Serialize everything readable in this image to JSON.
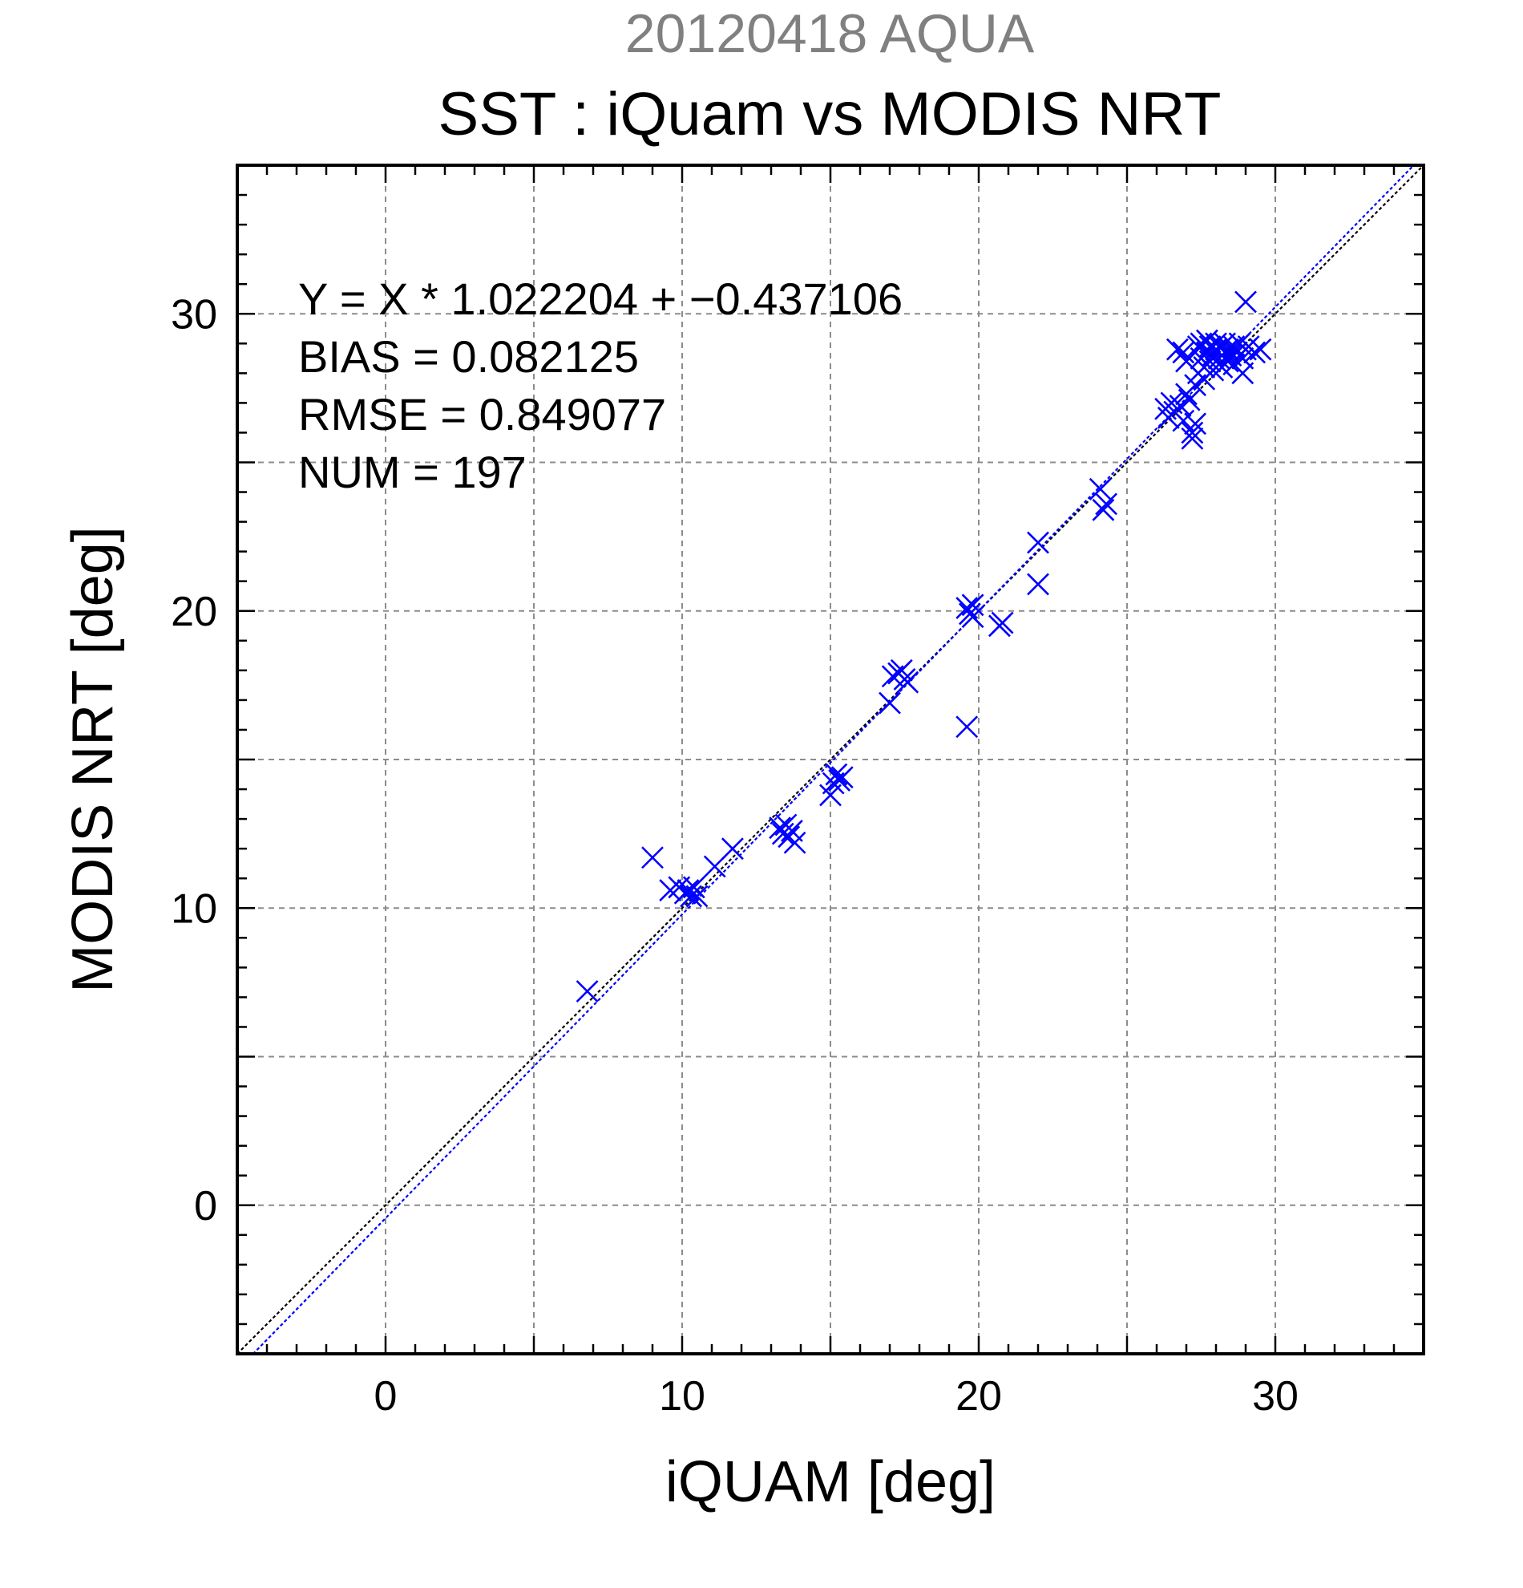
{
  "chart_data": {
    "type": "scatter",
    "title": "SST : iQuam vs MODIS NRT",
    "subtitle": "20120418 AQUA",
    "xlabel": "iQUAM [deg]",
    "ylabel": "MODIS NRT [deg]",
    "xlim": [
      -5,
      35
    ],
    "ylim": [
      -5,
      35
    ],
    "xticks": [
      0,
      10,
      20,
      30
    ],
    "yticks": [
      0,
      10,
      20,
      30
    ],
    "grid": true,
    "stats": [
      "Y = X * 1.022204 + −0.437106",
      "BIAS = 0.082125",
      "RMSE = 0.849077",
      "NUM = 197"
    ],
    "lines": [
      {
        "kind": "one-to-one",
        "slope": 1.0,
        "intercept": 0.0,
        "color": "#000000"
      },
      {
        "kind": "regression",
        "slope": 1.022204,
        "intercept": -0.437106,
        "color": "#0000ff"
      }
    ],
    "marker_color": "#0000ff",
    "marker": "x",
    "points": [
      [
        6.8,
        7.2
      ],
      [
        9.0,
        11.7
      ],
      [
        9.6,
        10.6
      ],
      [
        9.9,
        10.7
      ],
      [
        10.1,
        10.5
      ],
      [
        10.2,
        10.6
      ],
      [
        10.3,
        10.4
      ],
      [
        10.4,
        10.7
      ],
      [
        10.5,
        10.4
      ],
      [
        11.1,
        11.4
      ],
      [
        11.7,
        12.0
      ],
      [
        13.3,
        12.7
      ],
      [
        13.4,
        12.5
      ],
      [
        13.5,
        12.8
      ],
      [
        13.6,
        12.4
      ],
      [
        13.7,
        12.6
      ],
      [
        13.8,
        12.2
      ],
      [
        15.0,
        13.8
      ],
      [
        15.1,
        14.2
      ],
      [
        15.2,
        14.5
      ],
      [
        15.3,
        14.3
      ],
      [
        15.4,
        14.4
      ],
      [
        17.0,
        16.9
      ],
      [
        17.1,
        17.8
      ],
      [
        17.3,
        17.9
      ],
      [
        17.4,
        18.0
      ],
      [
        17.5,
        17.7
      ],
      [
        17.6,
        17.6
      ],
      [
        19.6,
        16.1
      ],
      [
        19.6,
        20.1
      ],
      [
        19.7,
        19.9
      ],
      [
        19.8,
        20.2
      ],
      [
        19.8,
        19.8
      ],
      [
        20.7,
        19.5
      ],
      [
        20.8,
        19.6
      ],
      [
        22.0,
        22.3
      ],
      [
        22.0,
        20.9
      ],
      [
        24.1,
        24.1
      ],
      [
        24.2,
        23.4
      ],
      [
        24.3,
        23.6
      ],
      [
        26.3,
        26.8
      ],
      [
        26.4,
        26.5
      ],
      [
        26.5,
        27.0
      ],
      [
        26.6,
        26.7
      ],
      [
        26.8,
        26.9
      ],
      [
        26.9,
        26.4
      ],
      [
        27.0,
        27.3
      ],
      [
        26.7,
        28.8
      ],
      [
        26.9,
        28.7
      ],
      [
        27.0,
        28.4
      ],
      [
        27.1,
        27.1
      ],
      [
        27.2,
        26.0
      ],
      [
        27.2,
        25.8
      ],
      [
        27.3,
        27.6
      ],
      [
        27.3,
        26.3
      ],
      [
        27.4,
        28.0
      ],
      [
        27.4,
        28.9
      ],
      [
        27.5,
        29.0
      ],
      [
        27.5,
        28.5
      ],
      [
        27.6,
        28.2
      ],
      [
        27.6,
        27.8
      ],
      [
        27.7,
        28.7
      ],
      [
        27.7,
        29.1
      ],
      [
        27.8,
        28.4
      ],
      [
        27.8,
        28.9
      ],
      [
        27.9,
        28.1
      ],
      [
        27.9,
        28.6
      ],
      [
        28.0,
        28.8
      ],
      [
        28.0,
        29.0
      ],
      [
        28.1,
        28.3
      ],
      [
        28.1,
        28.5
      ],
      [
        28.2,
        28.9
      ],
      [
        28.2,
        28.2
      ],
      [
        28.3,
        28.7
      ],
      [
        28.3,
        29.0
      ],
      [
        28.4,
        28.4
      ],
      [
        28.4,
        28.8
      ],
      [
        28.5,
        28.6
      ],
      [
        28.6,
        28.9
      ],
      [
        28.6,
        28.3
      ],
      [
        28.7,
        28.7
      ],
      [
        28.8,
        29.0
      ],
      [
        28.9,
        28.5
      ],
      [
        28.9,
        28.0
      ],
      [
        29.0,
        28.8
      ],
      [
        29.0,
        30.4
      ],
      [
        29.1,
        28.9
      ],
      [
        29.5,
        28.8
      ],
      [
        29.3,
        28.7
      ]
    ]
  }
}
